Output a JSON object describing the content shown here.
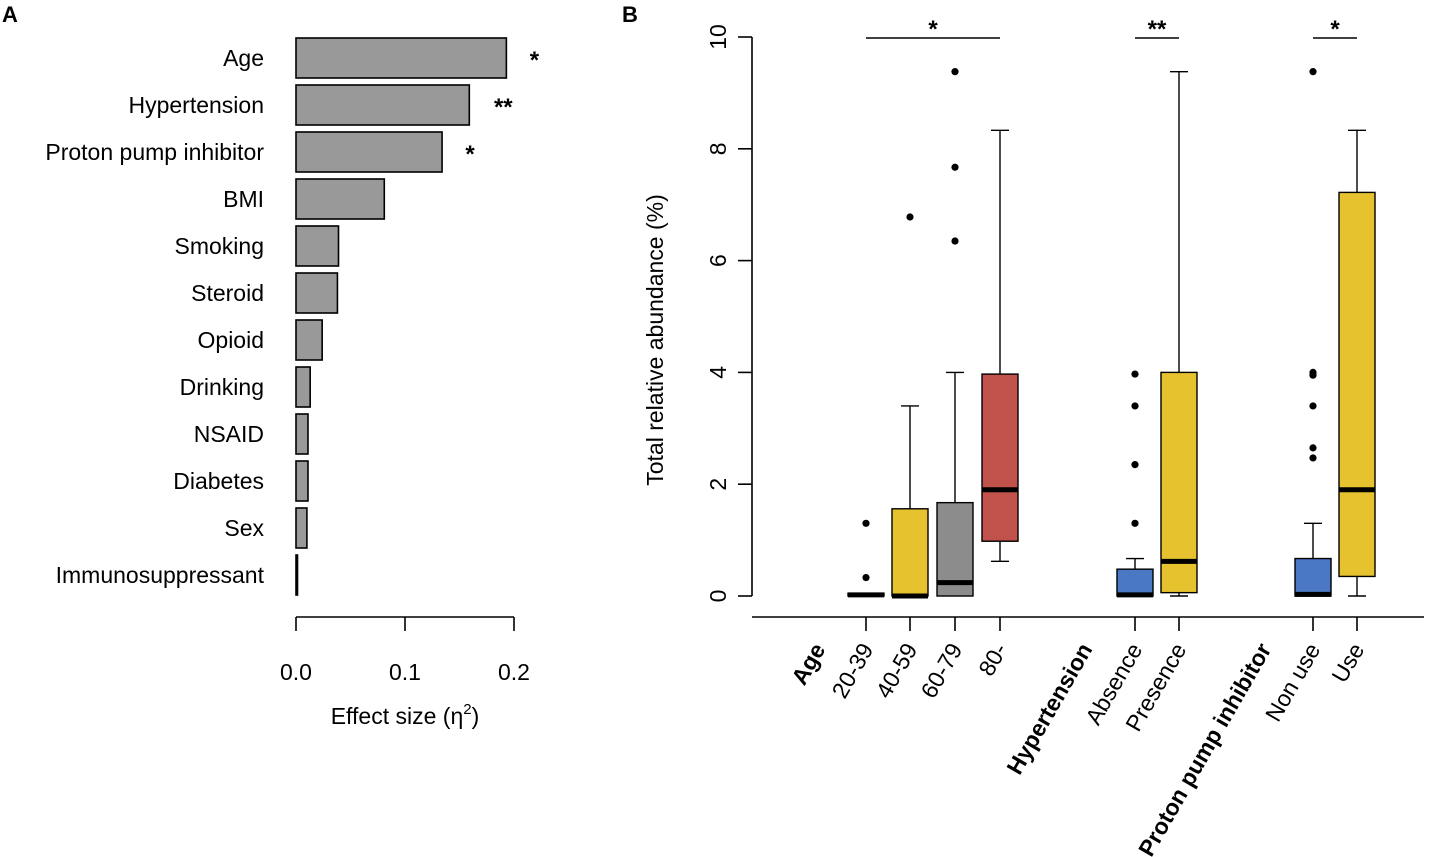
{
  "figure": {
    "panel_a_letter": "A",
    "panel_b_letter": "B"
  },
  "colors": {
    "gray_bar": "#999999",
    "blue": "#4a78c5",
    "yellow": "#e6c22e",
    "gray_box": "#8c8c8c",
    "red": "#c0524b"
  },
  "chart_data": [
    {
      "type": "bar",
      "orientation": "horizontal",
      "panel": "A",
      "categories": [
        "Age",
        "Hypertension",
        "Proton pump inhibitor",
        "BMI",
        "Smoking",
        "Steroid",
        "Opioid",
        "Drinking",
        "NSAID",
        "Diabetes",
        "Sex",
        "Immunosuppressant"
      ],
      "values": [
        0.193,
        0.159,
        0.134,
        0.081,
        0.039,
        0.038,
        0.024,
        0.013,
        0.011,
        0.011,
        0.01,
        0.001
      ],
      "significance": [
        "*",
        "**",
        "*",
        "",
        "",
        "",
        "",
        "",
        "",
        "",
        "",
        ""
      ],
      "xlim": [
        0,
        0.2
      ],
      "xticks": [
        "0.0",
        "0.1",
        "0.2"
      ],
      "xtick_values": [
        0,
        0.1,
        0.2
      ],
      "xlabel": "Effect size (η",
      "xlabel_sup": "2",
      "xlabel_close": ")"
    },
    {
      "type": "boxplot",
      "panel": "B",
      "ylabel": "Total relative abundance (%)",
      "ylim": [
        0,
        10
      ],
      "yticks": [
        "0",
        "2",
        "4",
        "6",
        "8",
        "10"
      ],
      "ytick_values": [
        0,
        2,
        4,
        6,
        8,
        10
      ],
      "group_labels": [
        "Age",
        "Hypertension",
        "Proton pump inhibitor"
      ],
      "boxes": [
        {
          "label": "20-39",
          "group": 0,
          "color": "#4a78c5",
          "q1": 0.0,
          "median": 0.02,
          "q3": 0.05,
          "whisker_low": 0.0,
          "whisker_high": 0.05,
          "outliers": [
            1.3,
            0.33
          ]
        },
        {
          "label": "40-59",
          "group": 0,
          "color": "#e6c22e",
          "q1": 0.0,
          "median": 0.0,
          "q3": 1.56,
          "whisker_low": 0.0,
          "whisker_high": 3.4,
          "outliers": [
            6.78
          ]
        },
        {
          "label": "60-79",
          "group": 0,
          "color": "#8c8c8c",
          "q1": 0.0,
          "median": 0.24,
          "q3": 1.67,
          "whisker_low": 0.0,
          "whisker_high": 4.0,
          "outliers": [
            9.38,
            7.67,
            6.35
          ]
        },
        {
          "label": "80-",
          "group": 0,
          "color": "#c0524b",
          "q1": 0.98,
          "median": 1.9,
          "q3": 3.97,
          "whisker_low": 0.62,
          "whisker_high": 8.33,
          "outliers": []
        },
        {
          "label": "Absence",
          "group": 1,
          "color": "#4a78c5",
          "q1": 0.0,
          "median": 0.02,
          "q3": 0.48,
          "whisker_low": 0.0,
          "whisker_high": 0.67,
          "outliers": [
            3.97,
            3.4,
            2.35,
            1.3
          ]
        },
        {
          "label": "Presence",
          "group": 1,
          "color": "#e6c22e",
          "q1": 0.06,
          "median": 0.62,
          "q3": 4.0,
          "whisker_low": 0.0,
          "whisker_high": 9.38,
          "outliers": []
        },
        {
          "label": "Non use",
          "group": 2,
          "color": "#4a78c5",
          "q1": 0.0,
          "median": 0.03,
          "q3": 0.67,
          "whisker_low": 0.0,
          "whisker_high": 1.3,
          "outliers": [
            9.38,
            4.0,
            3.95,
            3.4,
            2.65,
            2.47
          ]
        },
        {
          "label": "Use",
          "group": 2,
          "color": "#e6c22e",
          "q1": 0.35,
          "median": 1.9,
          "q3": 7.22,
          "whisker_low": 0.0,
          "whisker_high": 8.33,
          "outliers": []
        }
      ],
      "significance_brackets": [
        {
          "from": 0,
          "to": 3,
          "label": "*"
        },
        {
          "from": 4,
          "to": 5,
          "label": "**"
        },
        {
          "from": 6,
          "to": 7,
          "label": "*"
        }
      ]
    }
  ]
}
